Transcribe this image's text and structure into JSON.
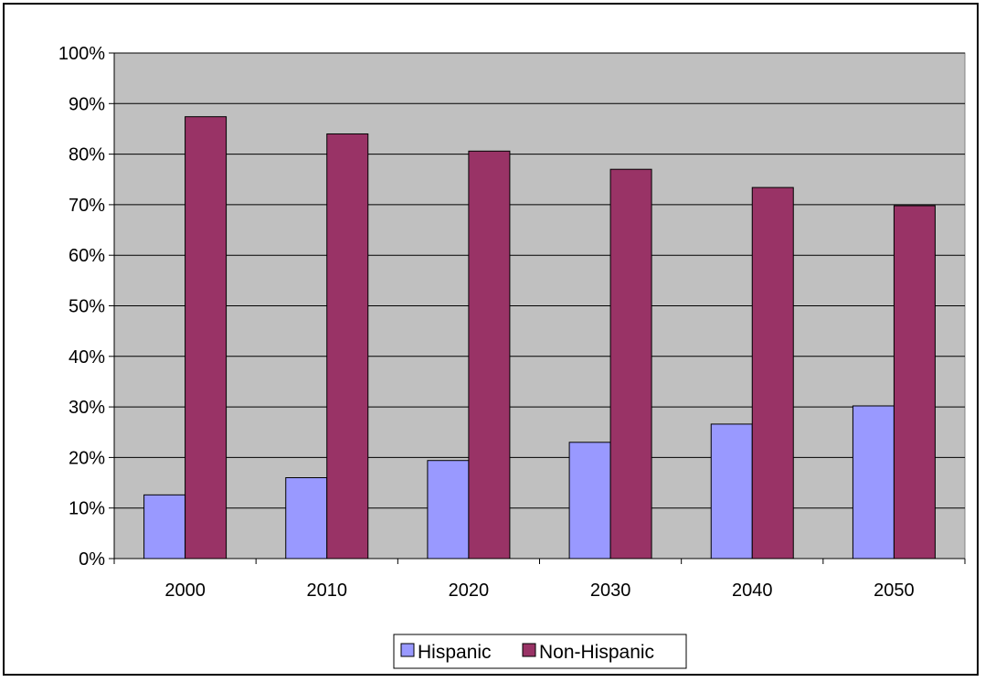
{
  "chart_data": {
    "type": "bar",
    "title": "",
    "xlabel": "",
    "ylabel": "",
    "categories": [
      "2000",
      "2010",
      "2020",
      "2030",
      "2040",
      "2050"
    ],
    "series": [
      {
        "name": "Hispanic",
        "values": [
          12.6,
          16.0,
          19.4,
          23.0,
          26.6,
          30.2
        ]
      },
      {
        "name": "Non-Hispanic",
        "values": [
          87.4,
          84.0,
          80.6,
          77.0,
          73.4,
          69.8
        ]
      }
    ],
    "ylim": [
      0,
      100
    ],
    "ytick_labels": [
      "0%",
      "10%",
      "20%",
      "30%",
      "40%",
      "50%",
      "60%",
      "70%",
      "80%",
      "90%",
      "100%"
    ],
    "grid": true,
    "legend_position": "bottom",
    "colors": {
      "plot_background": "#c0c0c0",
      "Hispanic": "#9999ff",
      "Non-Hispanic": "#993366",
      "gridline": "#000000"
    }
  }
}
